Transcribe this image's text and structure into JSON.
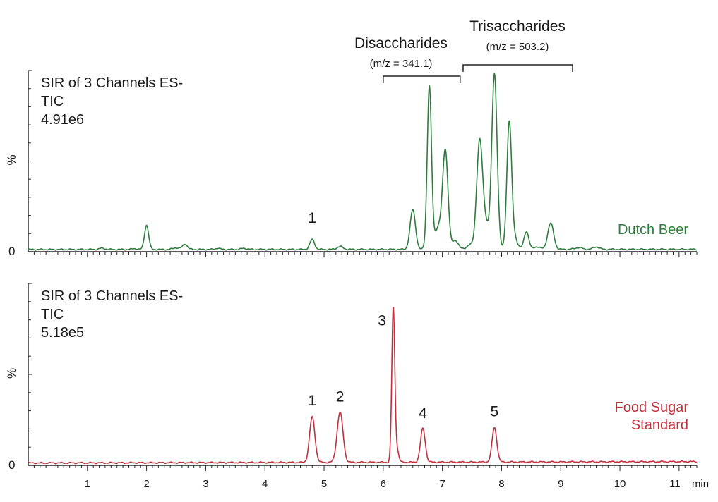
{
  "chart_data": [
    {
      "type": "line",
      "x_unit_label": "min",
      "xlim": [
        0,
        11.3
      ],
      "ylim": [
        0,
        100
      ],
      "y_tick_labels": [
        "0",
        "%"
      ],
      "header_lines": [
        "SIR of 3 Channels ES-",
        "TIC",
        "4.91e6"
      ],
      "series": [
        {
          "name": "Dutch Beer",
          "color": "#2e7d3e",
          "baseline": 1.2,
          "drift": 0.1,
          "peaks": [
            {
              "t": 1.25,
              "h": 0.7,
              "w": 0.05
            },
            {
              "t": 1.8,
              "h": 0.5,
              "w": 0.04
            },
            {
              "t": 2.0,
              "h": 13.5,
              "w": 0.035
            },
            {
              "t": 2.5,
              "h": 1.0,
              "w": 0.05
            },
            {
              "t": 2.65,
              "h": 3.0,
              "w": 0.04
            },
            {
              "t": 3.2,
              "h": 0.7,
              "w": 0.04
            },
            {
              "t": 3.65,
              "h": 0.6,
              "w": 0.05
            },
            {
              "t": 4.8,
              "h": 5.5,
              "w": 0.04
            },
            {
              "t": 5.27,
              "h": 1.6,
              "w": 0.05
            },
            {
              "t": 6.5,
              "h": 22,
              "w": 0.045
            },
            {
              "t": 6.78,
              "h": 90,
              "w": 0.036
            },
            {
              "t": 6.93,
              "h": 12,
              "w": 0.06
            },
            {
              "t": 7.05,
              "h": 54,
              "w": 0.045
            },
            {
              "t": 7.22,
              "h": 5,
              "w": 0.05
            },
            {
              "t": 7.46,
              "h": 2.5,
              "w": 0.05
            },
            {
              "t": 7.63,
              "h": 60,
              "w": 0.05
            },
            {
              "t": 7.74,
              "h": 12,
              "w": 0.05
            },
            {
              "t": 7.88,
              "h": 97,
              "w": 0.045
            },
            {
              "t": 8.13,
              "h": 70,
              "w": 0.04
            },
            {
              "t": 8.22,
              "h": 6,
              "w": 0.05
            },
            {
              "t": 8.42,
              "h": 10,
              "w": 0.04
            },
            {
              "t": 8.6,
              "h": 1.5,
              "w": 0.05
            },
            {
              "t": 8.83,
              "h": 14.5,
              "w": 0.05
            },
            {
              "t": 9.3,
              "h": 1.0,
              "w": 0.06
            },
            {
              "t": 9.6,
              "h": 1.4,
              "w": 0.05
            }
          ]
        }
      ],
      "annotations": [
        {
          "text": "1",
          "x": 4.8,
          "level": 16
        }
      ],
      "brackets": [
        {
          "title": "Disaccharides",
          "subtitle": "(m/z = 341.1)",
          "x_start": 6.0,
          "x_end": 7.3
        },
        {
          "title": "Trisaccharides",
          "subtitle": "(m/z = 503.2)",
          "x_start": 7.35,
          "x_end": 9.2
        }
      ]
    },
    {
      "type": "line",
      "x_unit_label": "min",
      "xlim": [
        0,
        11.3
      ],
      "ylim": [
        0,
        100
      ],
      "y_tick_labels": [
        "0",
        "%"
      ],
      "x_ticks": [
        1,
        2,
        3,
        4,
        5,
        6,
        7,
        8,
        9,
        10,
        11
      ],
      "header_lines": [
        "SIR of 3 Channels ES-",
        "TIC",
        "5.18e5"
      ],
      "series": [
        {
          "name_lines": [
            "Food Sugar",
            "Standard"
          ],
          "color": "#c0303d",
          "baseline": 1.3,
          "drift": 0.75,
          "peaks": [
            {
              "t": 4.8,
              "h": 25,
              "w": 0.045
            },
            {
              "t": 5.27,
              "h": 27.5,
              "w": 0.05
            },
            {
              "t": 6.17,
              "h": 85,
              "w": 0.025
            },
            {
              "t": 6.23,
              "h": 7,
              "w": 0.03
            },
            {
              "t": 6.67,
              "h": 18.5,
              "w": 0.04
            },
            {
              "t": 7.88,
              "h": 19,
              "w": 0.04
            }
          ]
        }
      ],
      "annotations": [
        {
          "text": "1",
          "x": 4.8,
          "level": 33
        },
        {
          "text": "2",
          "x": 5.27,
          "level": 35
        },
        {
          "text": "3",
          "x": 5.98,
          "level": 77
        },
        {
          "text": "4",
          "x": 6.67,
          "level": 26
        },
        {
          "text": "5",
          "x": 7.88,
          "level": 27
        }
      ]
    }
  ]
}
